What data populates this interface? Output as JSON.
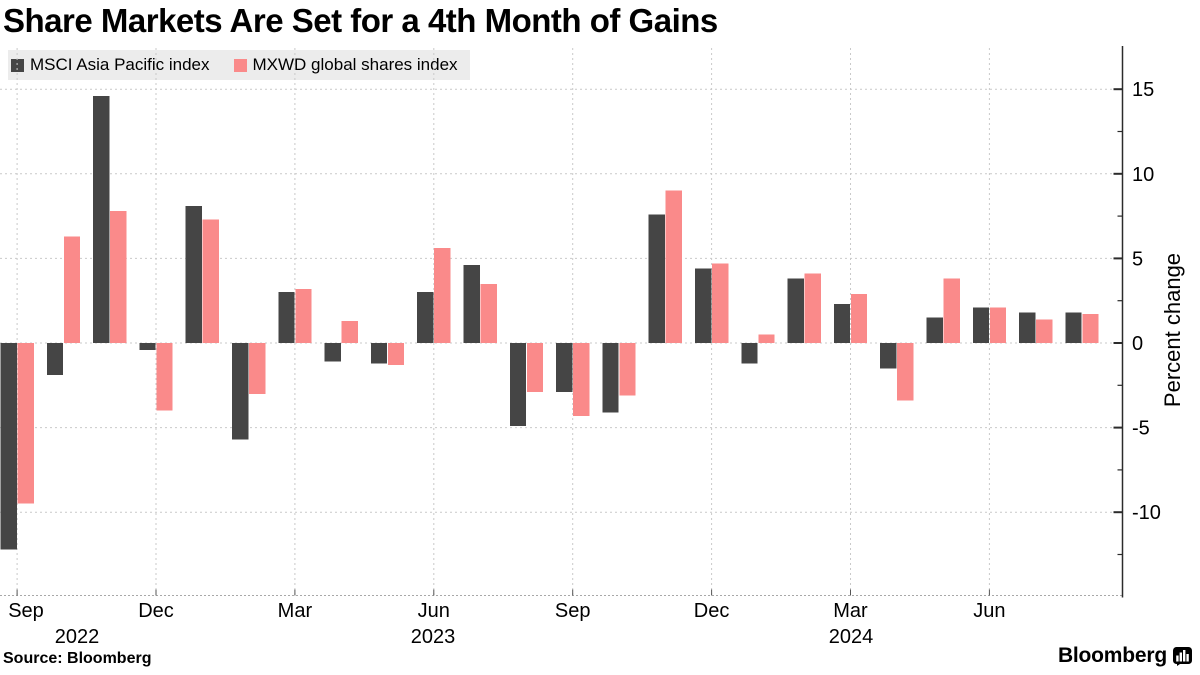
{
  "title": "Share Markets Are Set for a 4th Month of Gains",
  "legend": [
    {
      "label": "MSCI Asia Pacific index",
      "color": "#454545"
    },
    {
      "label": "MXWD global shares index",
      "color": "#fa8a8a"
    }
  ],
  "source": "Source: Bloomberg",
  "brand": {
    "logo_text": "Bloomberg",
    "logo_icon": "bloomberg-bars-icon"
  },
  "chart_data": {
    "type": "bar",
    "title": "Share Markets Are Set for a 4th Month of Gains",
    "categories": [
      "Sep 2022",
      "Oct 2022",
      "Nov 2022",
      "Dec 2022",
      "Jan 2023",
      "Feb 2023",
      "Mar 2023",
      "Apr 2023",
      "May 2023",
      "Jun 2023",
      "Jul 2023",
      "Aug 2023",
      "Sep 2023",
      "Oct 2023",
      "Nov 2023",
      "Dec 2023",
      "Jan 2024",
      "Feb 2024",
      "Mar 2024",
      "Apr 2024",
      "May 2024",
      "Jun 2024",
      "Jul 2024",
      "Aug 2024"
    ],
    "series": [
      {
        "name": "MSCI Asia Pacific index",
        "color": "#454545",
        "values": [
          -12.2,
          -1.9,
          14.6,
          -0.4,
          8.1,
          -5.7,
          3.0,
          -1.1,
          -1.2,
          3.0,
          4.6,
          -4.9,
          -2.9,
          -4.1,
          7.6,
          4.4,
          -1.2,
          3.8,
          2.3,
          -1.5,
          1.5,
          2.1,
          1.8,
          1.8
        ]
      },
      {
        "name": "MXWD global shares index",
        "color": "#fa8a8a",
        "values": [
          -9.5,
          6.3,
          7.8,
          -4.0,
          7.3,
          -3.0,
          3.2,
          1.3,
          -1.3,
          5.6,
          3.5,
          -2.9,
          -4.3,
          -3.1,
          9.0,
          4.7,
          0.5,
          4.1,
          2.9,
          -3.4,
          3.8,
          2.1,
          1.4,
          1.7
        ]
      }
    ],
    "xlabel": "",
    "ylabel": "Percent change",
    "ylim": [
      -15,
      17.5
    ],
    "y_ticks": [
      15,
      10,
      5,
      0,
      -5,
      -10
    ],
    "y_minor_step": 2.5,
    "x_tick_labels": [
      "Sep",
      "Dec",
      "Mar",
      "Jun",
      "Sep",
      "Dec",
      "Mar",
      "Jun"
    ],
    "x_tick_month_indices": [
      0,
      3,
      6,
      9,
      12,
      15,
      18,
      21
    ],
    "year_labels": [
      "2022",
      "2023",
      "2024"
    ],
    "grid": "dashed",
    "legend_position": "top-left"
  }
}
